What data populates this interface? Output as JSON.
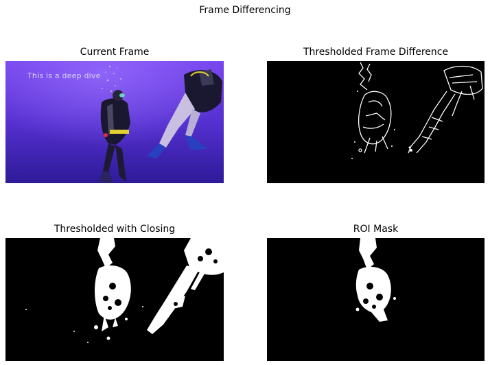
{
  "figure": {
    "title": "Frame Differencing"
  },
  "panels": [
    {
      "title": "Current Frame",
      "overlay_text": "This is a deep dive"
    },
    {
      "title": "Thresholded Frame Difference"
    },
    {
      "title": "Thresholded with Closing"
    },
    {
      "title": "ROI Mask"
    }
  ],
  "colors": {
    "water_top": "#6e3ee6",
    "water_bottom": "#2f1a9a",
    "mask_fg": "#ffffff",
    "mask_bg": "#000000"
  }
}
